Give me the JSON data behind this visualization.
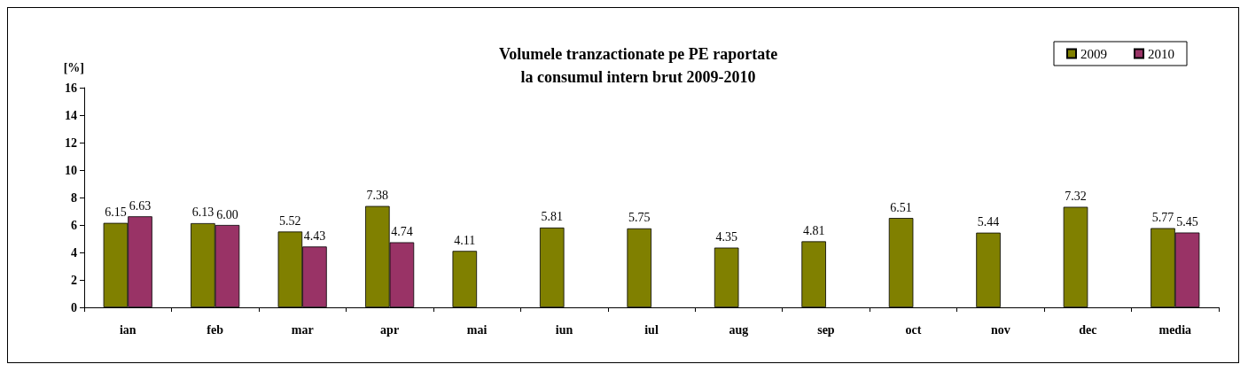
{
  "chart_data": {
    "type": "bar",
    "title": "Volumele tranzactionate pe PE raportate\nla consumul intern brut 2009-2010",
    "ylabel": "[%]",
    "categories": [
      "ian",
      "feb",
      "mar",
      "apr",
      "mai",
      "iun",
      "iul",
      "aug",
      "sep",
      "oct",
      "nov",
      "dec",
      "media"
    ],
    "series": [
      {
        "name": "2009",
        "color": "#808000",
        "values": [
          6.15,
          6.13,
          5.52,
          7.38,
          4.11,
          5.81,
          5.75,
          4.35,
          4.81,
          6.51,
          5.44,
          7.32,
          5.77
        ],
        "value_labels": [
          "6.15",
          "6.13",
          "5.52",
          "7.38",
          "4.11",
          "5.81",
          "5.75",
          "4.35",
          "4.81",
          "6.51",
          "5.44",
          "7.32",
          "5.77"
        ]
      },
      {
        "name": "2010",
        "color": "#993366",
        "values": [
          6.63,
          6.0,
          4.43,
          4.74,
          null,
          null,
          null,
          null,
          null,
          null,
          null,
          null,
          5.45
        ],
        "value_labels": [
          "6.63",
          "6.00",
          "4.43",
          "4.74",
          null,
          null,
          null,
          null,
          null,
          null,
          null,
          null,
          "5.45"
        ]
      }
    ],
    "ylim": [
      0,
      16
    ],
    "yticks": [
      0,
      2,
      4,
      6,
      8,
      10,
      12,
      14,
      16
    ],
    "grid": false,
    "legend": "top right"
  }
}
